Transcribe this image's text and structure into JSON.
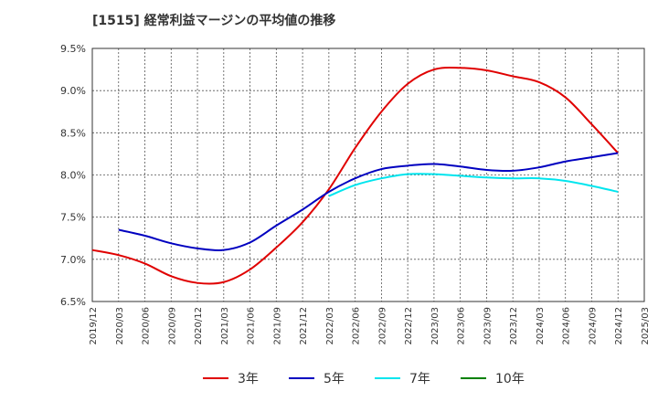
{
  "title": "[1515]  経常利益マージンの平均値の推移",
  "chart_data": {
    "type": "line",
    "title": "[1515]  経常利益マージンの平均値の推移",
    "xlabel": "",
    "ylabel": "",
    "x_ticks": [
      "2019/12",
      "2020/03",
      "2020/06",
      "2020/09",
      "2020/12",
      "2021/03",
      "2021/06",
      "2021/09",
      "2021/12",
      "2022/03",
      "2022/06",
      "2022/09",
      "2022/12",
      "2023/03",
      "2023/06",
      "2023/09",
      "2023/12",
      "2024/03",
      "2024/06",
      "2024/09",
      "2024/12",
      "2025/03"
    ],
    "y_ticks": [
      "6.5%",
      "7.0%",
      "7.5%",
      "8.0%",
      "8.5%",
      "9.0%",
      "9.5%"
    ],
    "ylim": [
      6.5,
      9.5
    ],
    "grid": true,
    "legend_position": "bottom",
    "series": [
      {
        "name": "3年",
        "color": "#e00000",
        "x": [
          "2019/12",
          "2020/03",
          "2020/06",
          "2020/09",
          "2020/12",
          "2021/03",
          "2021/06",
          "2021/09",
          "2021/12",
          "2022/03",
          "2022/06",
          "2022/09",
          "2022/12",
          "2023/03",
          "2023/06",
          "2023/09",
          "2023/12",
          "2024/03",
          "2024/06",
          "2024/09",
          "2024/12"
        ],
        "values": [
          7.11,
          7.05,
          6.95,
          6.8,
          6.72,
          6.73,
          6.88,
          7.14,
          7.44,
          7.83,
          8.32,
          8.75,
          9.08,
          9.25,
          9.27,
          9.24,
          9.17,
          9.1,
          8.92,
          8.6,
          8.26
        ]
      },
      {
        "name": "5年",
        "color": "#0000c0",
        "x": [
          "2020/03",
          "2020/06",
          "2020/09",
          "2020/12",
          "2021/03",
          "2021/06",
          "2021/09",
          "2021/12",
          "2022/03",
          "2022/06",
          "2022/09",
          "2022/12",
          "2023/03",
          "2023/06",
          "2023/09",
          "2023/12",
          "2024/03",
          "2024/06",
          "2024/09",
          "2024/12"
        ],
        "values": [
          7.35,
          7.28,
          7.19,
          7.13,
          7.11,
          7.2,
          7.4,
          7.59,
          7.8,
          7.96,
          8.07,
          8.11,
          8.13,
          8.1,
          8.06,
          8.05,
          8.09,
          8.16,
          8.21,
          8.26
        ]
      },
      {
        "name": "7年",
        "color": "#00e5ee",
        "x": [
          "2022/03",
          "2022/06",
          "2022/09",
          "2022/12",
          "2023/03",
          "2023/06",
          "2023/09",
          "2023/12",
          "2024/03",
          "2024/06",
          "2024/09",
          "2024/12"
        ],
        "values": [
          7.75,
          7.88,
          7.96,
          8.01,
          8.01,
          7.99,
          7.97,
          7.96,
          7.96,
          7.93,
          7.87,
          7.8
        ]
      },
      {
        "name": "10年",
        "color": "#008000",
        "x": [],
        "values": []
      }
    ]
  }
}
